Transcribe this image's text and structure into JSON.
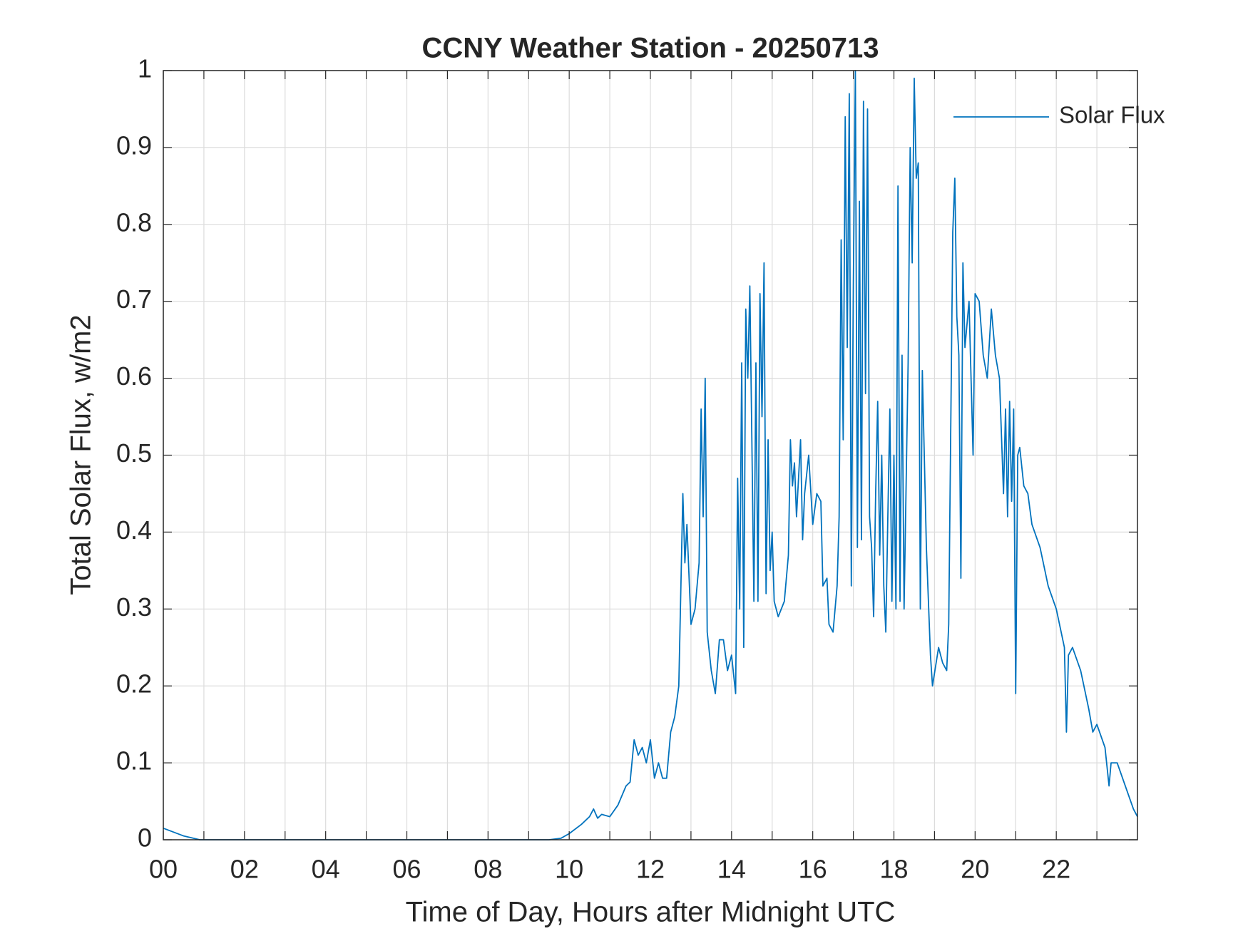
{
  "chart_data": {
    "type": "line",
    "title": "CCNY Weather Station - 20250713",
    "x_label": "Time of Day, Hours after Midnight UTC",
    "y_label": "Total Solar Flux, w/m2",
    "x": [
      0,
      0.5,
      0.9,
      1,
      2,
      3,
      4,
      5,
      6,
      7,
      8,
      9,
      9.5,
      9.8,
      10,
      10.3,
      10.5,
      10.6,
      10.7,
      10.8,
      11,
      11.2,
      11.4,
      11.5,
      11.6,
      11.7,
      11.8,
      11.9,
      12,
      12.1,
      12.2,
      12.3,
      12.4,
      12.5,
      12.6,
      12.7,
      12.8,
      12.85,
      12.9,
      13,
      13.1,
      13.2,
      13.25,
      13.3,
      13.35,
      13.4,
      13.5,
      13.6,
      13.7,
      13.8,
      13.9,
      14,
      14.1,
      14.15,
      14.2,
      14.25,
      14.3,
      14.35,
      14.4,
      14.45,
      14.5,
      14.55,
      14.6,
      14.65,
      14.7,
      14.75,
      14.8,
      14.85,
      14.9,
      14.95,
      15,
      15.05,
      15.15,
      15.3,
      15.4,
      15.45,
      15.5,
      15.55,
      15.6,
      15.7,
      15.75,
      15.8,
      15.9,
      16,
      16.1,
      16.2,
      16.25,
      16.35,
      16.4,
      16.5,
      16.6,
      16.65,
      16.7,
      16.75,
      16.8,
      16.85,
      16.9,
      16.95,
      17,
      17.05,
      17.1,
      17.15,
      17.2,
      17.25,
      17.3,
      17.35,
      17.4,
      17.45,
      17.5,
      17.55,
      17.6,
      17.65,
      17.7,
      17.75,
      17.8,
      17.85,
      17.9,
      17.95,
      18,
      18.05,
      18.1,
      18.15,
      18.2,
      18.25,
      18.35,
      18.4,
      18.45,
      18.5,
      18.55,
      18.6,
      18.65,
      18.7,
      18.8,
      18.9,
      18.95,
      19.1,
      19.2,
      19.3,
      19.35,
      19.45,
      19.5,
      19.55,
      19.6,
      19.65,
      19.7,
      19.75,
      19.85,
      19.95,
      20,
      20.1,
      20.2,
      20.3,
      20.4,
      20.5,
      20.6,
      20.7,
      20.75,
      20.8,
      20.85,
      20.9,
      20.95,
      21,
      21.05,
      21.1,
      21.2,
      21.3,
      21.4,
      21.6,
      21.8,
      22,
      22.2,
      22.25,
      22.3,
      22.4,
      22.6,
      22.8,
      22.9,
      23,
      23.2,
      23.3,
      23.35,
      23.5,
      23.7,
      23.9,
      24
    ],
    "series": [
      {
        "name": "Solar Flux",
        "color": "#0072bd",
        "values": [
          0.015,
          0.005,
          0,
          0,
          0,
          0,
          0,
          0,
          0,
          0,
          0,
          0,
          0,
          0.002,
          0.008,
          0.02,
          0.03,
          0.04,
          0.028,
          0.033,
          0.03,
          0.045,
          0.07,
          0.075,
          0.13,
          0.11,
          0.12,
          0.1,
          0.13,
          0.08,
          0.1,
          0.08,
          0.08,
          0.14,
          0.16,
          0.2,
          0.45,
          0.36,
          0.41,
          0.28,
          0.3,
          0.36,
          0.56,
          0.42,
          0.6,
          0.27,
          0.22,
          0.19,
          0.26,
          0.26,
          0.22,
          0.24,
          0.19,
          0.47,
          0.3,
          0.62,
          0.25,
          0.69,
          0.6,
          0.72,
          0.52,
          0.31,
          0.62,
          0.31,
          0.71,
          0.55,
          0.75,
          0.32,
          0.52,
          0.35,
          0.4,
          0.31,
          0.29,
          0.31,
          0.37,
          0.52,
          0.46,
          0.49,
          0.42,
          0.52,
          0.39,
          0.45,
          0.5,
          0.41,
          0.45,
          0.44,
          0.33,
          0.34,
          0.28,
          0.27,
          0.33,
          0.42,
          0.78,
          0.52,
          0.94,
          0.64,
          0.97,
          0.33,
          0.72,
          1.0,
          0.38,
          0.83,
          0.39,
          0.96,
          0.58,
          0.95,
          0.42,
          0.38,
          0.29,
          0.45,
          0.57,
          0.37,
          0.5,
          0.33,
          0.27,
          0.42,
          0.56,
          0.31,
          0.5,
          0.3,
          0.85,
          0.31,
          0.63,
          0.3,
          0.62,
          0.9,
          0.75,
          0.99,
          0.86,
          0.88,
          0.3,
          0.61,
          0.38,
          0.24,
          0.2,
          0.25,
          0.23,
          0.22,
          0.28,
          0.79,
          0.86,
          0.68,
          0.63,
          0.34,
          0.75,
          0.64,
          0.7,
          0.5,
          0.71,
          0.7,
          0.63,
          0.6,
          0.69,
          0.63,
          0.6,
          0.45,
          0.56,
          0.42,
          0.57,
          0.44,
          0.56,
          0.19,
          0.5,
          0.51,
          0.46,
          0.45,
          0.41,
          0.38,
          0.33,
          0.3,
          0.25,
          0.14,
          0.24,
          0.25,
          0.22,
          0.17,
          0.14,
          0.15,
          0.12,
          0.07,
          0.1,
          0.1,
          0.07,
          0.04,
          0.03
        ]
      }
    ],
    "xlim": [
      0,
      24
    ],
    "xticks": [
      {
        "value": 0,
        "label": "00"
      },
      {
        "value": 2,
        "label": "02"
      },
      {
        "value": 4,
        "label": "04"
      },
      {
        "value": 6,
        "label": "06"
      },
      {
        "value": 8,
        "label": "08"
      },
      10,
      12,
      14,
      16,
      18,
      20,
      22
    ],
    "minor_xticks": [
      1,
      3,
      5,
      7,
      9,
      11,
      13,
      15,
      17,
      19,
      21,
      23
    ],
    "ylim": [
      0,
      1
    ],
    "yticks": [
      0,
      0.1,
      0.2,
      0.3,
      0.4,
      0.5,
      0.6,
      0.7,
      0.8,
      0.9,
      1
    ],
    "grid": true,
    "legend": "upper right"
  }
}
